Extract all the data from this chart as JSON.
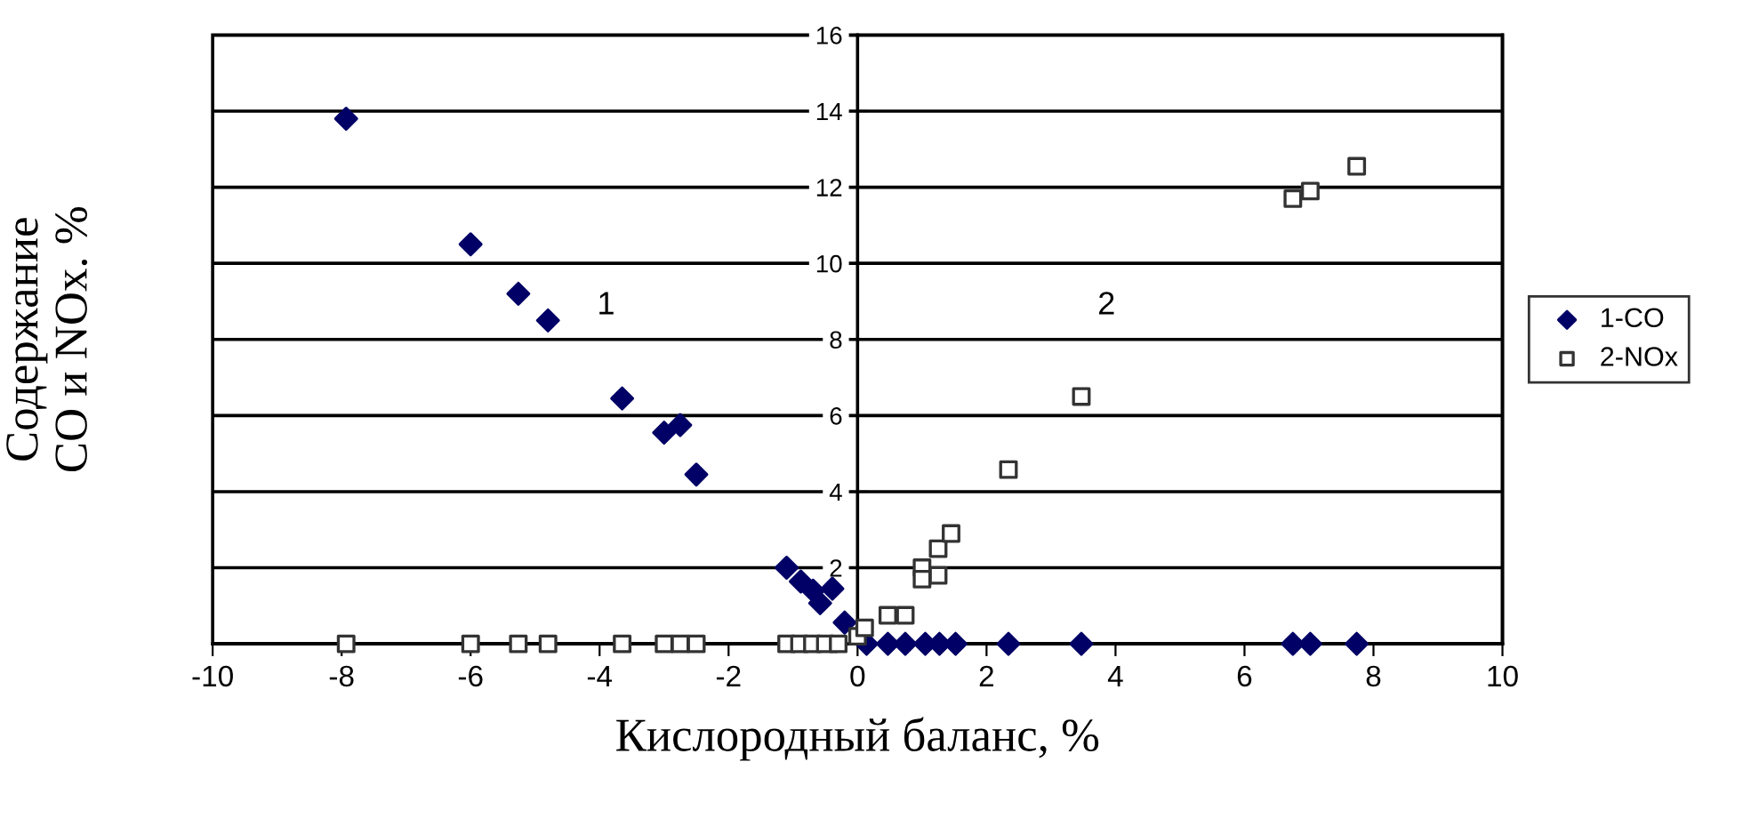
{
  "chart_data": {
    "type": "scatter",
    "xlabel": "Кислородный баланс, %",
    "ylabel": "Содержание\nCO и NOx. %",
    "xlim": [
      -10,
      10
    ],
    "ylim": [
      0,
      16
    ],
    "xticks": [
      -10,
      -8,
      -6,
      -4,
      -2,
      0,
      2,
      4,
      6,
      8,
      10
    ],
    "yticks": [
      0,
      2,
      4,
      6,
      8,
      10,
      12,
      14,
      16
    ],
    "grid": "y",
    "legend": "right",
    "annotations": [
      "1",
      "2"
    ],
    "series": [
      {
        "name": "1-CO",
        "color": "#000066",
        "marker": "diamond",
        "x": [
          -7.93,
          -6.0,
          -5.26,
          -4.8,
          -3.65,
          -3.0,
          -2.75,
          -2.5,
          -1.1,
          -0.88,
          -0.69,
          -0.39,
          -0.58,
          -0.2,
          0.14,
          0.47,
          0.74,
          1.05,
          1.27,
          1.52,
          2.34,
          3.47,
          6.75,
          7.02,
          7.74
        ],
        "values": [
          13.8,
          10.5,
          9.2,
          8.5,
          6.45,
          5.55,
          5.75,
          4.45,
          2.0,
          1.64,
          1.4,
          1.45,
          1.07,
          0.56,
          0,
          0,
          0,
          0,
          0,
          0,
          0,
          0,
          0,
          0,
          0
        ]
      },
      {
        "name": "2-NOx",
        "color": "#333333",
        "marker": "square",
        "x": [
          -7.93,
          -6.0,
          -5.26,
          -4.8,
          -3.65,
          -3.0,
          -2.75,
          -2.5,
          -1.1,
          -0.9,
          -0.7,
          -0.5,
          -0.3,
          0.0,
          0.11,
          0.47,
          0.74,
          1.0,
          1.0,
          1.25,
          1.25,
          1.45,
          2.34,
          3.47,
          6.75,
          7.02,
          7.74
        ],
        "values": [
          0,
          0,
          0,
          0,
          0,
          0,
          0,
          0,
          0,
          0,
          0,
          0,
          0,
          0.2,
          0.42,
          0.75,
          0.75,
          2.0,
          1.7,
          1.8,
          2.5,
          2.9,
          4.58,
          6.5,
          11.7,
          11.9,
          12.55
        ]
      }
    ]
  }
}
